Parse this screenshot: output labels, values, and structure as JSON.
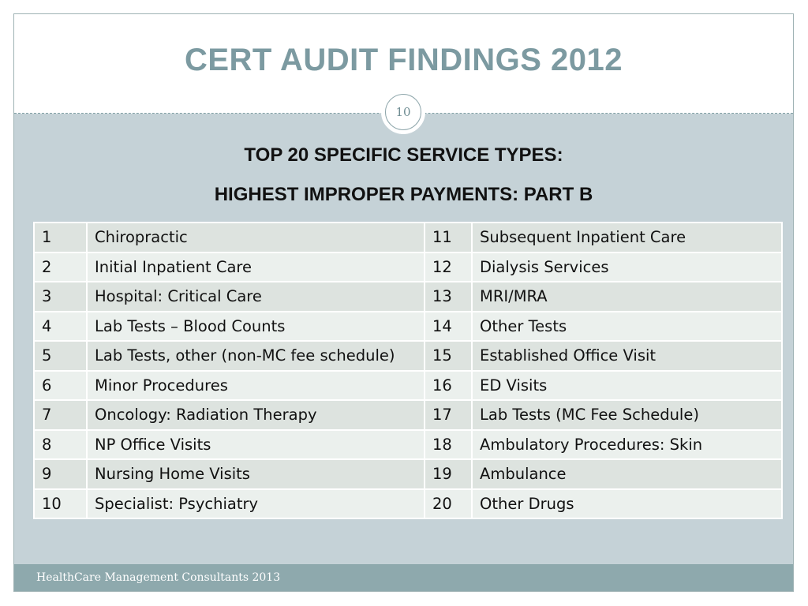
{
  "slide": {
    "title": "CERT AUDIT FINDINGS 2012",
    "slide_number": "10",
    "subtitle_line1": "TOP 20 SPECIFIC SERVICE TYPES:",
    "subtitle_line2": "HIGHEST IMPROPER PAYMENTS: PART B",
    "footer": "HealthCare Management Consultants 2013"
  },
  "table": {
    "rows": [
      [
        "1",
        "Chiropractic",
        "11",
        "Subsequent Inpatient Care"
      ],
      [
        "2",
        "Initial Inpatient Care",
        "12",
        "Dialysis Services"
      ],
      [
        "3",
        "Hospital: Critical Care",
        "13",
        "MRI/MRA"
      ],
      [
        "4",
        "Lab Tests – Blood Counts",
        "14",
        "Other Tests"
      ],
      [
        "5",
        "Lab Tests, other (non-MC fee schedule)",
        "15",
        "Established Office Visit"
      ],
      [
        "6",
        "Minor Procedures",
        "16",
        "ED Visits"
      ],
      [
        "7",
        "Oncology: Radiation Therapy",
        "17",
        "Lab Tests (MC Fee Schedule)"
      ],
      [
        "8",
        "NP Office Visits",
        "18",
        "Ambulatory Procedures: Skin"
      ],
      [
        "9",
        "Nursing Home Visits",
        "19",
        "Ambulance"
      ],
      [
        "10",
        "Specialist: Psychiatry",
        "20",
        "Other Drugs"
      ]
    ]
  }
}
